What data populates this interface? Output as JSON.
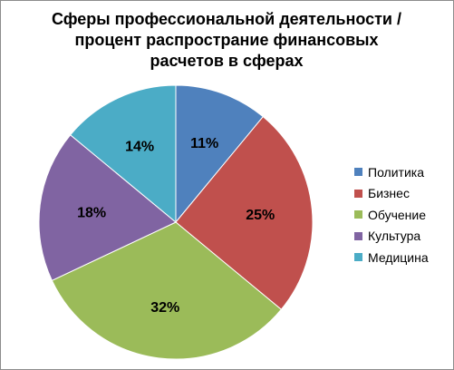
{
  "chart_data": {
    "type": "pie",
    "title": [
      "Сферы профессиональной деятельности /",
      "процент распространие финансовых",
      "расчетов в сферах"
    ],
    "categories": [
      "Политика",
      "Бизнес",
      "Обучение",
      "Культура",
      "Медицина"
    ],
    "values": [
      11,
      25,
      32,
      18,
      14
    ],
    "labels": [
      "11%",
      "25%",
      "32%",
      "18%",
      "14%"
    ],
    "colors": [
      "#4F81BD",
      "#C0504D",
      "#9BBB59",
      "#8064A2",
      "#4BACC6"
    ],
    "legend_position": "right"
  }
}
